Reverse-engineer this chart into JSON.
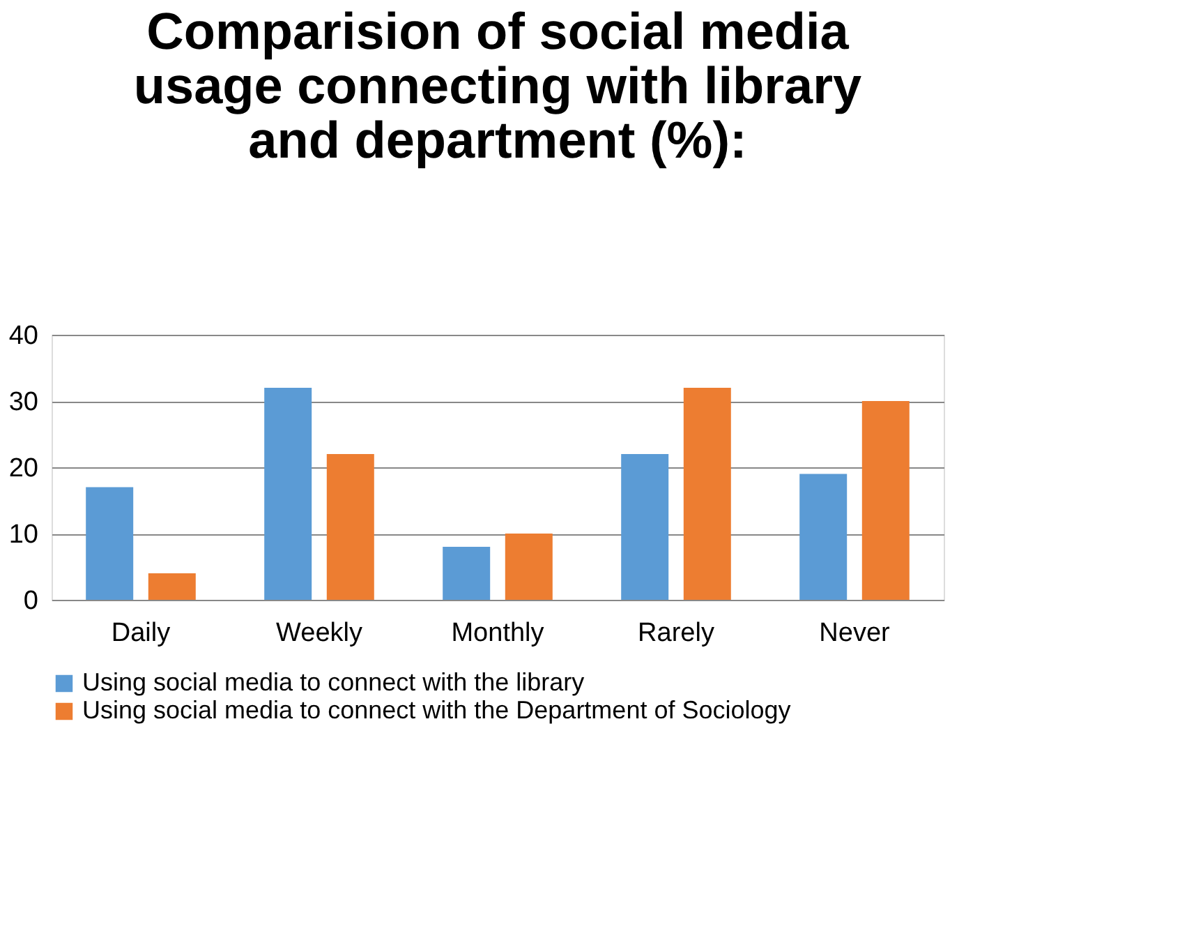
{
  "chart_data": {
    "type": "bar",
    "title": "Comparision of social media usage connecting with library and department (%):",
    "categories": [
      "Daily",
      "Weekly",
      "Monthly",
      "Rarely",
      "Never"
    ],
    "series": [
      {
        "name": "Using social media to connect with the library",
        "color": "#5b9bd5",
        "values": [
          17,
          32,
          8,
          22,
          19
        ]
      },
      {
        "name": "Using social media to connect with the Department of Sociology",
        "color": "#ed7d31",
        "values": [
          4,
          22,
          10,
          32,
          30
        ]
      }
    ],
    "ylim": [
      0,
      40
    ],
    "yticks": [
      0,
      10,
      20,
      30,
      40
    ],
    "grid": "y",
    "legend": "bottom"
  }
}
